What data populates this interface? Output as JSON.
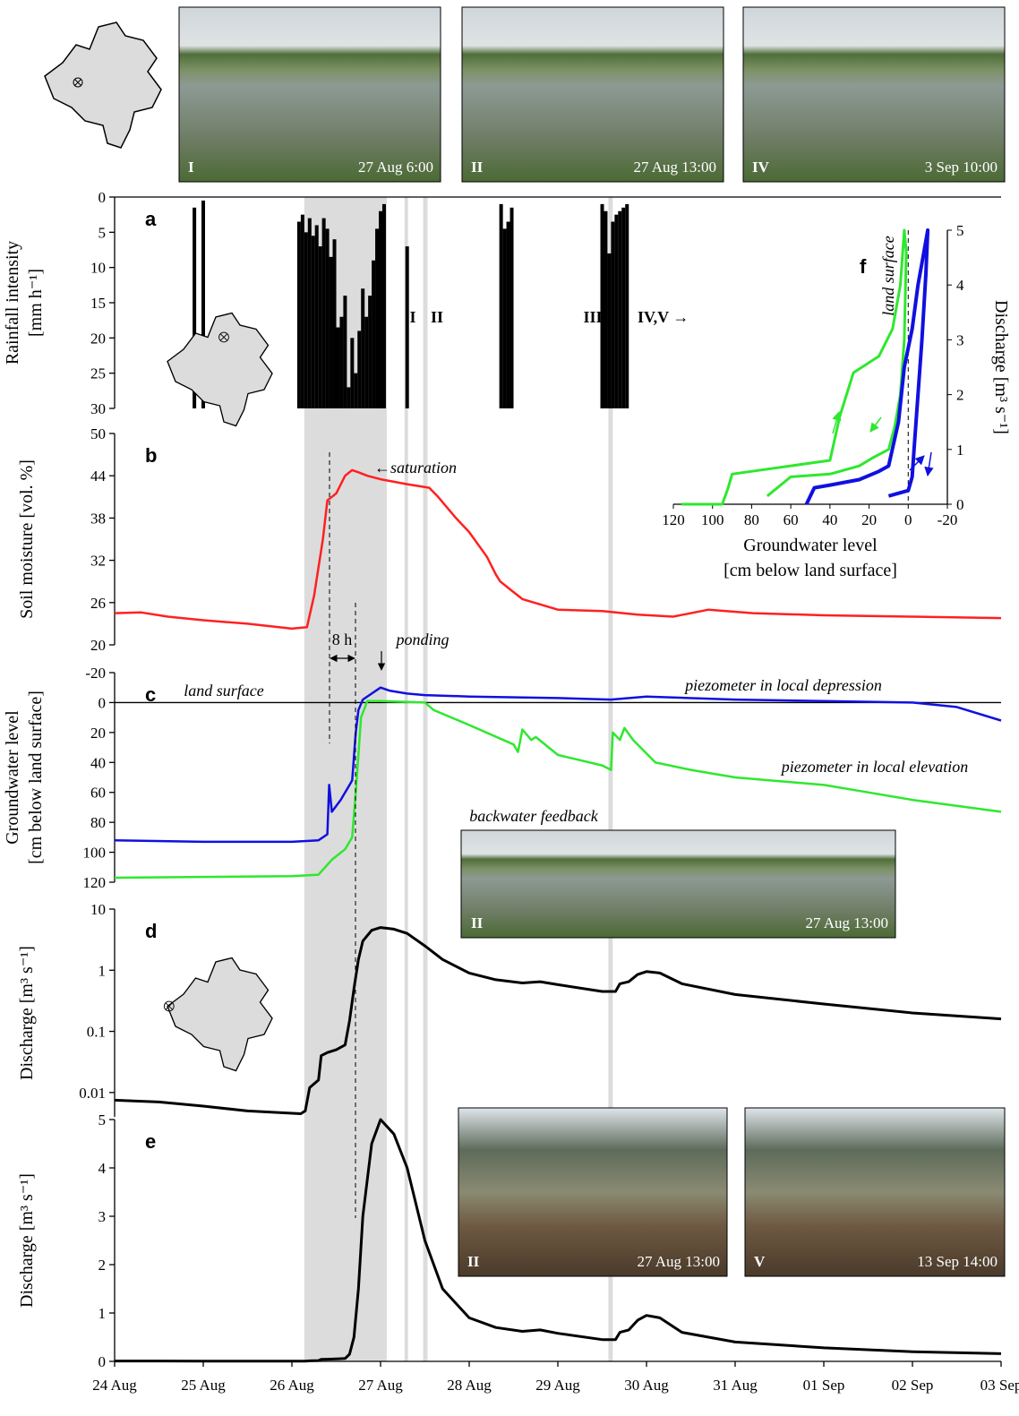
{
  "chart_data": [
    {
      "type": "bar",
      "panel": "a",
      "ylabel": [
        "Rainfall intensity",
        "[mm h⁻¹]"
      ],
      "ylim": [
        30,
        0
      ],
      "yticks": [
        0,
        5,
        10,
        15,
        20,
        25,
        30
      ],
      "color": "#000000",
      "x": [
        0.9,
        1.0,
        2.08,
        2.12,
        2.16,
        2.2,
        2.24,
        2.28,
        2.32,
        2.36,
        2.4,
        2.44,
        2.48,
        2.52,
        2.56,
        2.6,
        2.64,
        2.68,
        2.72,
        2.76,
        2.8,
        2.84,
        2.88,
        2.92,
        2.96,
        3.0,
        3.04,
        3.3,
        4.36,
        4.4,
        4.44,
        4.48,
        5.5,
        5.54,
        5.58,
        5.62,
        5.66,
        5.7,
        5.74,
        5.78
      ],
      "values": [
        1.5,
        0.5,
        3.5,
        2.5,
        5,
        3,
        5.5,
        4,
        7,
        3,
        4.5,
        8.5,
        6,
        18.5,
        17,
        14,
        27,
        20,
        25,
        19,
        13,
        17,
        14,
        9,
        4.5,
        2,
        1,
        7,
        1,
        4.5,
        3.5,
        1.5,
        1,
        2,
        8,
        3.5,
        2.5,
        2,
        1.5,
        1
      ],
      "annotations": [
        "I",
        "II",
        "III",
        "IV,V →"
      ],
      "shaded_periods": [
        [
          2.14,
          3.07
        ],
        [
          3.27,
          3.31
        ],
        [
          3.48,
          3.53
        ],
        [
          5.57,
          5.62
        ]
      ]
    },
    {
      "type": "line",
      "panel": "b",
      "ylabel": "Soil moisture [vol. %]",
      "ylim": [
        20,
        50
      ],
      "yticks": [
        20,
        26,
        32,
        38,
        44,
        50
      ],
      "series": [
        {
          "color": "#ff2020",
          "x": [
            0,
            0.3,
            0.6,
            1,
            1.5,
            2,
            2.17,
            2.25,
            2.35,
            2.4,
            2.45,
            2.5,
            2.6,
            2.68,
            2.75,
            2.85,
            3,
            3.3,
            3.55,
            3.65,
            3.85,
            4,
            4.2,
            4.3,
            4.35,
            4.45,
            4.6,
            5,
            5.5,
            5.9,
            6.3,
            6.7,
            7.2,
            8,
            9,
            10
          ],
          "values": [
            24.5,
            24.6,
            24,
            23.5,
            23,
            22.3,
            22.5,
            27,
            35,
            40.5,
            41,
            41.5,
            44,
            44.8,
            44.5,
            44,
            43.5,
            42.8,
            42.3,
            41,
            38,
            36,
            32.5,
            30,
            29,
            28,
            26.5,
            25,
            24.8,
            24.3,
            24,
            25,
            24.5,
            24.2,
            24,
            23.8
          ]
        }
      ],
      "annotations": [
        "←saturation",
        "8 h",
        "ponding"
      ]
    },
    {
      "type": "line",
      "panel": "c",
      "ylabel": [
        "Groundwater level",
        "[cm below land surface]"
      ],
      "ylim": [
        120,
        -20
      ],
      "yticks": [
        -20,
        0,
        20,
        40,
        60,
        80,
        100,
        120
      ],
      "series": [
        {
          "name": "piezometer in local depression",
          "color": "#1010e0",
          "x": [
            0,
            1,
            2,
            2.3,
            2.4,
            2.42,
            2.45,
            2.55,
            2.65,
            2.68,
            2.72,
            2.75,
            2.8,
            2.9,
            3,
            3.1,
            3.3,
            3.5,
            4,
            5,
            5.6,
            6,
            7,
            8,
            9,
            9.5,
            10
          ],
          "values": [
            92,
            93,
            93,
            92,
            88,
            55,
            73,
            65,
            55,
            52,
            20,
            5,
            -2,
            -6,
            -10,
            -8,
            -6,
            -5,
            -4,
            -3,
            -2,
            -4,
            -2,
            -1,
            0,
            3,
            12
          ]
        },
        {
          "name": "piezometer in local elevation",
          "color": "#2ee82e",
          "x": [
            0,
            2,
            2.3,
            2.45,
            2.6,
            2.68,
            2.72,
            2.78,
            2.85,
            3,
            3.5,
            3.6,
            4,
            4.5,
            4.55,
            4.6,
            4.7,
            4.75,
            5,
            5.5,
            5.6,
            5.62,
            5.7,
            5.75,
            5.85,
            6.1,
            6.5,
            7,
            8,
            8.5,
            9,
            10
          ],
          "values": [
            117,
            116,
            115,
            105,
            98,
            90,
            60,
            10,
            -1,
            -1,
            0,
            5,
            15,
            28,
            33,
            18,
            25,
            23,
            35,
            42,
            45,
            20,
            25,
            17,
            25,
            40,
            45,
            50,
            55,
            60,
            65,
            73
          ]
        }
      ],
      "annotations": [
        "land surface",
        "backwater feedback"
      ]
    },
    {
      "type": "line",
      "panel": "d",
      "ylabel": "Discharge [m³ s⁻¹]",
      "yscale": "log",
      "ylim": [
        0.004,
        10
      ],
      "yticks": [
        0.01,
        0.1,
        1,
        10
      ],
      "series": [
        {
          "color": "#000000",
          "x": [
            0,
            0.5,
            1,
            1.5,
            2.1,
            2.15,
            2.2,
            2.3,
            2.33,
            2.4,
            2.5,
            2.6,
            2.65,
            2.7,
            2.75,
            2.8,
            2.9,
            3.0,
            3.15,
            3.3,
            3.5,
            3.7,
            4,
            4.3,
            4.6,
            4.8,
            5,
            5.5,
            5.65,
            5.7,
            5.8,
            5.9,
            6,
            6.15,
            6.4,
            7,
            8,
            9,
            10
          ],
          "values": [
            0.0075,
            0.007,
            0.006,
            0.005,
            0.0045,
            0.005,
            0.012,
            0.016,
            0.04,
            0.045,
            0.05,
            0.06,
            0.15,
            0.5,
            1.5,
            3,
            4.5,
            5,
            4.7,
            4,
            2.5,
            1.5,
            0.9,
            0.7,
            0.62,
            0.65,
            0.58,
            0.45,
            0.45,
            0.6,
            0.65,
            0.85,
            0.95,
            0.9,
            0.6,
            0.4,
            0.28,
            0.2,
            0.16
          ]
        }
      ]
    },
    {
      "type": "line",
      "panel": "e",
      "ylabel": "Discharge [m³ s⁻¹]",
      "ylim": [
        0,
        5
      ],
      "yticks": [
        0,
        1,
        2,
        3,
        4,
        5
      ],
      "xlim": [
        0,
        10
      ],
      "xticks": [
        {
          "value": 0,
          "label": "24 Aug"
        },
        {
          "value": 1,
          "label": "25 Aug"
        },
        {
          "value": 2,
          "label": "26 Aug"
        },
        {
          "value": 3,
          "label": "27 Aug"
        },
        {
          "value": 4,
          "label": "28 Aug"
        },
        {
          "value": 5,
          "label": "29 Aug"
        },
        {
          "value": 6,
          "label": "30 Aug"
        },
        {
          "value": 7,
          "label": "31 Aug"
        },
        {
          "value": 8,
          "label": "01 Sep"
        },
        {
          "value": 9,
          "label": "02 Sep"
        },
        {
          "value": 10,
          "label": "03 Sep"
        }
      ],
      "series": [
        {
          "color": "#000000",
          "x": [
            0,
            0.5,
            1,
            1.5,
            2.1,
            2.15,
            2.2,
            2.3,
            2.33,
            2.4,
            2.5,
            2.6,
            2.65,
            2.7,
            2.75,
            2.8,
            2.9,
            3.0,
            3.15,
            3.3,
            3.5,
            3.7,
            4,
            4.3,
            4.6,
            4.8,
            5,
            5.5,
            5.65,
            5.7,
            5.8,
            5.9,
            6,
            6.15,
            6.4,
            7,
            8,
            9,
            10
          ],
          "values": [
            0.0075,
            0.007,
            0.006,
            0.005,
            0.0045,
            0.005,
            0.012,
            0.016,
            0.04,
            0.045,
            0.05,
            0.06,
            0.15,
            0.5,
            1.5,
            3,
            4.5,
            5,
            4.7,
            4,
            2.5,
            1.5,
            0.9,
            0.7,
            0.62,
            0.65,
            0.58,
            0.45,
            0.45,
            0.6,
            0.65,
            0.85,
            0.95,
            0.9,
            0.6,
            0.4,
            0.28,
            0.2,
            0.16
          ]
        }
      ]
    },
    {
      "type": "line",
      "panel": "f",
      "xlabel": [
        "Groundwater level",
        "[cm below land surface]"
      ],
      "ylabel": "Discharge [m³ s⁻¹]",
      "xlim": [
        120,
        -20
      ],
      "xticks": [
        120,
        100,
        80,
        60,
        40,
        20,
        0,
        -20
      ],
      "ylim": [
        0,
        5
      ],
      "yticks": [
        0,
        1,
        2,
        3,
        4,
        5
      ],
      "series": [
        {
          "color": "#2ee82e",
          "x": [
            116,
            95,
            92,
            90,
            70,
            40,
            35,
            28,
            15,
            8,
            4,
            2,
            1,
            2,
            4,
            7,
            10,
            18,
            25,
            40,
            60,
            72
          ],
          "values": [
            0,
            0,
            0.3,
            0.55,
            0.65,
            0.8,
            1.6,
            2.4,
            2.7,
            3.2,
            4,
            5,
            4.6,
            3,
            2,
            1.4,
            1,
            0.85,
            0.7,
            0.55,
            0.5,
            0.15
          ]
        },
        {
          "color": "#1010e0",
          "x": [
            52,
            48,
            40,
            25,
            15,
            10,
            5,
            2,
            -2,
            -5,
            -8,
            -10,
            -9,
            -7,
            -5,
            -3,
            -2,
            0,
            10
          ],
          "values": [
            0,
            0.3,
            0.35,
            0.45,
            0.6,
            0.7,
            1.5,
            2.5,
            3.2,
            4,
            4.6,
            5,
            4.2,
            3,
            2,
            1,
            0.5,
            0.25,
            0.15
          ]
        }
      ],
      "annotations": [
        "land surface"
      ]
    }
  ],
  "photos": [
    {
      "label": "I",
      "caption": "27 Aug 6:00"
    },
    {
      "label": "II",
      "caption": "27 Aug 13:00"
    },
    {
      "label": "IV",
      "caption": "3 Sep 10:00"
    },
    {
      "label": "II",
      "caption": "27 Aug 13:00"
    },
    {
      "label": "II",
      "caption": "27 Aug 13:00"
    },
    {
      "label": "V",
      "caption": "13 Sep 14:00"
    }
  ]
}
